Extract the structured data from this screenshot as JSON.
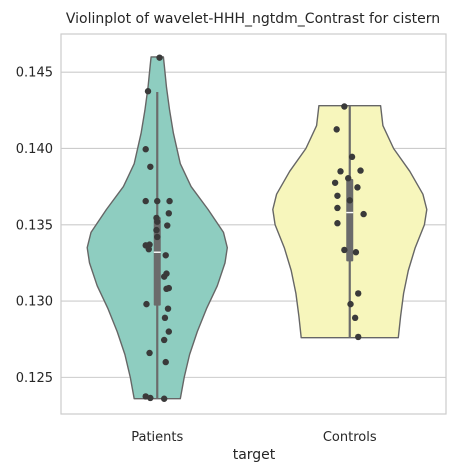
{
  "chart_data": {
    "type": "violin",
    "title": "Violinplot of wavelet-HHH_ngtdm_Contrast for cistern",
    "xlabel": "target",
    "ylabel": "",
    "categories": [
      "Patients",
      "Controls"
    ],
    "ylim": [
      0.1226,
      0.1475
    ],
    "yticks": [
      0.125,
      0.13,
      0.135,
      0.14,
      0.145
    ],
    "ytick_labels": [
      "0.125",
      "0.130",
      "0.135",
      "0.140",
      "0.145"
    ],
    "grid": true,
    "legend": "none",
    "series": [
      {
        "category": "Patients",
        "color": "#8ecdc0",
        "min": 0.1236,
        "max": 0.146,
        "q1": 0.1297,
        "median": 0.1332,
        "q3": 0.1355,
        "whisker_low": 0.1236,
        "whisker_high": 0.1437,
        "density": [
          [
            0.1236,
            0.3
          ],
          [
            0.125,
            0.35
          ],
          [
            0.1265,
            0.42
          ],
          [
            0.128,
            0.52
          ],
          [
            0.1295,
            0.64
          ],
          [
            0.131,
            0.78
          ],
          [
            0.1325,
            0.88
          ],
          [
            0.1335,
            0.91
          ],
          [
            0.1345,
            0.86
          ],
          [
            0.136,
            0.66
          ],
          [
            0.1375,
            0.44
          ],
          [
            0.139,
            0.3
          ],
          [
            0.141,
            0.21
          ],
          [
            0.1425,
            0.16
          ],
          [
            0.144,
            0.12
          ],
          [
            0.1455,
            0.09
          ],
          [
            0.146,
            0.08
          ]
        ],
        "points": [
          {
            "y": 0.14595,
            "jitter": 0.03
          },
          {
            "y": 0.14375,
            "jitter": -0.12
          },
          {
            "y": 0.13995,
            "jitter": -0.15
          },
          {
            "y": 0.1388,
            "jitter": -0.09
          },
          {
            "y": 0.13655,
            "jitter": -0.15
          },
          {
            "y": 0.13655,
            "jitter": 0.0
          },
          {
            "y": 0.13655,
            "jitter": 0.16
          },
          {
            "y": 0.13575,
            "jitter": 0.15
          },
          {
            "y": 0.13545,
            "jitter": -0.01
          },
          {
            "y": 0.1352,
            "jitter": 0.0
          },
          {
            "y": 0.13495,
            "jitter": 0.13
          },
          {
            "y": 0.13465,
            "jitter": -0.01
          },
          {
            "y": 0.1342,
            "jitter": 0.0
          },
          {
            "y": 0.1337,
            "jitter": -0.1
          },
          {
            "y": 0.13365,
            "jitter": -0.15
          },
          {
            "y": 0.1334,
            "jitter": -0.11
          },
          {
            "y": 0.133,
            "jitter": 0.11
          },
          {
            "y": 0.1318,
            "jitter": 0.12
          },
          {
            "y": 0.1316,
            "jitter": 0.09
          },
          {
            "y": 0.13085,
            "jitter": 0.15
          },
          {
            "y": 0.1308,
            "jitter": 0.12
          },
          {
            "y": 0.1298,
            "jitter": -0.14
          },
          {
            "y": 0.1295,
            "jitter": 0.14
          },
          {
            "y": 0.1289,
            "jitter": 0.1
          },
          {
            "y": 0.128,
            "jitter": 0.15
          },
          {
            "y": 0.12745,
            "jitter": 0.09
          },
          {
            "y": 0.1266,
            "jitter": -0.1
          },
          {
            "y": 0.126,
            "jitter": 0.11
          },
          {
            "y": 0.12375,
            "jitter": -0.15
          },
          {
            "y": 0.1236,
            "jitter": 0.09
          },
          {
            "y": 0.12365,
            "jitter": -0.09
          }
        ]
      },
      {
        "category": "Controls",
        "color": "#f7f6bc",
        "min": 0.1276,
        "max": 0.1428,
        "q1": 0.1326,
        "median": 0.1358,
        "q3": 0.138,
        "whisker_low": 0.1276,
        "whisker_high": 0.1428,
        "density": [
          [
            0.1276,
            0.63
          ],
          [
            0.129,
            0.66
          ],
          [
            0.1305,
            0.7
          ],
          [
            0.132,
            0.76
          ],
          [
            0.1335,
            0.85
          ],
          [
            0.135,
            0.97
          ],
          [
            0.136,
            1.0
          ],
          [
            0.137,
            0.95
          ],
          [
            0.1385,
            0.78
          ],
          [
            0.14,
            0.57
          ],
          [
            0.1415,
            0.43
          ],
          [
            0.1428,
            0.4
          ]
        ],
        "points": [
          {
            "y": 0.14275,
            "jitter": -0.07
          },
          {
            "y": 0.14125,
            "jitter": -0.17
          },
          {
            "y": 0.13945,
            "jitter": 0.03
          },
          {
            "y": 0.13855,
            "jitter": 0.14
          },
          {
            "y": 0.1385,
            "jitter": -0.12
          },
          {
            "y": 0.13805,
            "jitter": -0.02
          },
          {
            "y": 0.13775,
            "jitter": -0.19
          },
          {
            "y": 0.13745,
            "jitter": 0.1
          },
          {
            "y": 0.1369,
            "jitter": -0.16
          },
          {
            "y": 0.1366,
            "jitter": 0.0
          },
          {
            "y": 0.1361,
            "jitter": -0.16
          },
          {
            "y": 0.1357,
            "jitter": 0.18
          },
          {
            "y": 0.1351,
            "jitter": -0.16
          },
          {
            "y": 0.13335,
            "jitter": -0.07
          },
          {
            "y": 0.1332,
            "jitter": 0.08
          },
          {
            "y": 0.1305,
            "jitter": 0.11
          },
          {
            "y": 0.1298,
            "jitter": 0.01
          },
          {
            "y": 0.1289,
            "jitter": 0.07
          },
          {
            "y": 0.12765,
            "jitter": 0.11
          }
        ]
      }
    ]
  }
}
